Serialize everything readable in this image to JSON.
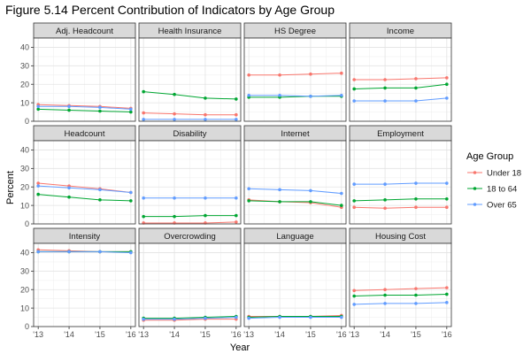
{
  "chart_data": {
    "type": "line",
    "title": "Figure 5.14 Percent Contribution of Indicators by Age Group",
    "xlabel": "Year",
    "ylabel": "Percent",
    "x": [
      "'13",
      "'14",
      "'15",
      "'16"
    ],
    "ylim": [
      0,
      45
    ],
    "yticks": [
      0,
      10,
      20,
      30,
      40
    ],
    "grid": true,
    "legend": {
      "title": "Age Group",
      "position": "right",
      "entries": [
        {
          "name": "Under 18",
          "color": "#F8766D"
        },
        {
          "name": "18 to 64",
          "color": "#00A632"
        },
        {
          "name": "Over 65",
          "color": "#619CFF"
        }
      ]
    },
    "panels": [
      {
        "title": "Adj. Headcount",
        "series": [
          {
            "name": "Under 18",
            "values": [
              9,
              8.5,
              8,
              7
            ]
          },
          {
            "name": "18 to 64",
            "values": [
              6.5,
              6,
              5.5,
              5
            ]
          },
          {
            "name": "Over 65",
            "values": [
              8,
              8,
              7.5,
              6.5
            ]
          }
        ]
      },
      {
        "title": "Health Insurance",
        "series": [
          {
            "name": "Under 18",
            "values": [
              4.5,
              4,
              3.5,
              3.5
            ]
          },
          {
            "name": "18 to 64",
            "values": [
              16,
              14.5,
              12.5,
              12
            ]
          },
          {
            "name": "Over 65",
            "values": [
              1,
              1,
              1,
              1
            ]
          }
        ]
      },
      {
        "title": "HS Degree",
        "series": [
          {
            "name": "Under 18",
            "values": [
              25,
              25,
              25.5,
              26
            ]
          },
          {
            "name": "18 to 64",
            "values": [
              13,
              13,
              13.5,
              13.5
            ]
          },
          {
            "name": "Over 65",
            "values": [
              14,
              14,
              13.5,
              14
            ]
          }
        ]
      },
      {
        "title": "Income",
        "series": [
          {
            "name": "Under 18",
            "values": [
              22.5,
              22.5,
              23,
              23.5
            ]
          },
          {
            "name": "18 to 64",
            "values": [
              17.5,
              18,
              18,
              20
            ]
          },
          {
            "name": "Over 65",
            "values": [
              11,
              11,
              11,
              12.5
            ]
          }
        ]
      },
      {
        "title": "Headcount",
        "series": [
          {
            "name": "Under 18",
            "values": [
              22,
              20.5,
              19,
              17
            ]
          },
          {
            "name": "18 to 64",
            "values": [
              16,
              14.5,
              13,
              12.5
            ]
          },
          {
            "name": "Over 65",
            "values": [
              20.5,
              19.5,
              18.5,
              17
            ]
          }
        ]
      },
      {
        "title": "Disability",
        "series": [
          {
            "name": "Under 18",
            "values": [
              0.5,
              0.5,
              0.5,
              1
            ]
          },
          {
            "name": "18 to 64",
            "values": [
              4,
              4,
              4.5,
              4.5
            ]
          },
          {
            "name": "Over 65",
            "values": [
              14,
              14,
              14,
              14
            ]
          }
        ]
      },
      {
        "title": "Internet",
        "series": [
          {
            "name": "Under 18",
            "values": [
              13,
              12,
              11.5,
              9
            ]
          },
          {
            "name": "18 to 64",
            "values": [
              12.5,
              12,
              12,
              10
            ]
          },
          {
            "name": "Over 65",
            "values": [
              19,
              18.5,
              18,
              16.5
            ]
          }
        ]
      },
      {
        "title": "Employment",
        "series": [
          {
            "name": "Under 18",
            "values": [
              9,
              8.5,
              9,
              9
            ]
          },
          {
            "name": "18 to 64",
            "values": [
              12.5,
              13,
              13.5,
              13.5
            ]
          },
          {
            "name": "Over 65",
            "values": [
              21.5,
              21.5,
              22,
              22
            ]
          }
        ]
      },
      {
        "title": "Intensity",
        "series": [
          {
            "name": "Under 18",
            "values": [
              41.5,
              41,
              40.5,
              40.5
            ]
          },
          {
            "name": "18 to 64",
            "values": [
              40.5,
              40.5,
              40.5,
              40.5
            ]
          },
          {
            "name": "Over 65",
            "values": [
              40.5,
              40.5,
              40.5,
              40
            ]
          }
        ]
      },
      {
        "title": "Overcrowding",
        "series": [
          {
            "name": "Under 18",
            "values": [
              3.5,
              3.5,
              4,
              4
            ]
          },
          {
            "name": "18 to 64",
            "values": [
              4.5,
              4.5,
              5,
              5.5
            ]
          },
          {
            "name": "Over 65",
            "values": [
              4,
              4,
              4.5,
              5
            ]
          }
        ]
      },
      {
        "title": "Language",
        "series": [
          {
            "name": "Under 18",
            "values": [
              5.5,
              5.5,
              5.5,
              6
            ]
          },
          {
            "name": "18 to 64",
            "values": [
              5,
              5.5,
              5.5,
              5.5
            ]
          },
          {
            "name": "Over 65",
            "values": [
              4.5,
              5,
              5,
              5
            ]
          }
        ]
      },
      {
        "title": "Housing Cost",
        "series": [
          {
            "name": "Under 18",
            "values": [
              19.5,
              20,
              20.5,
              21
            ]
          },
          {
            "name": "18 to 64",
            "values": [
              16.5,
              17,
              17,
              17.5
            ]
          },
          {
            "name": "Over 65",
            "values": [
              12,
              12.5,
              12.5,
              13
            ]
          }
        ]
      }
    ]
  }
}
